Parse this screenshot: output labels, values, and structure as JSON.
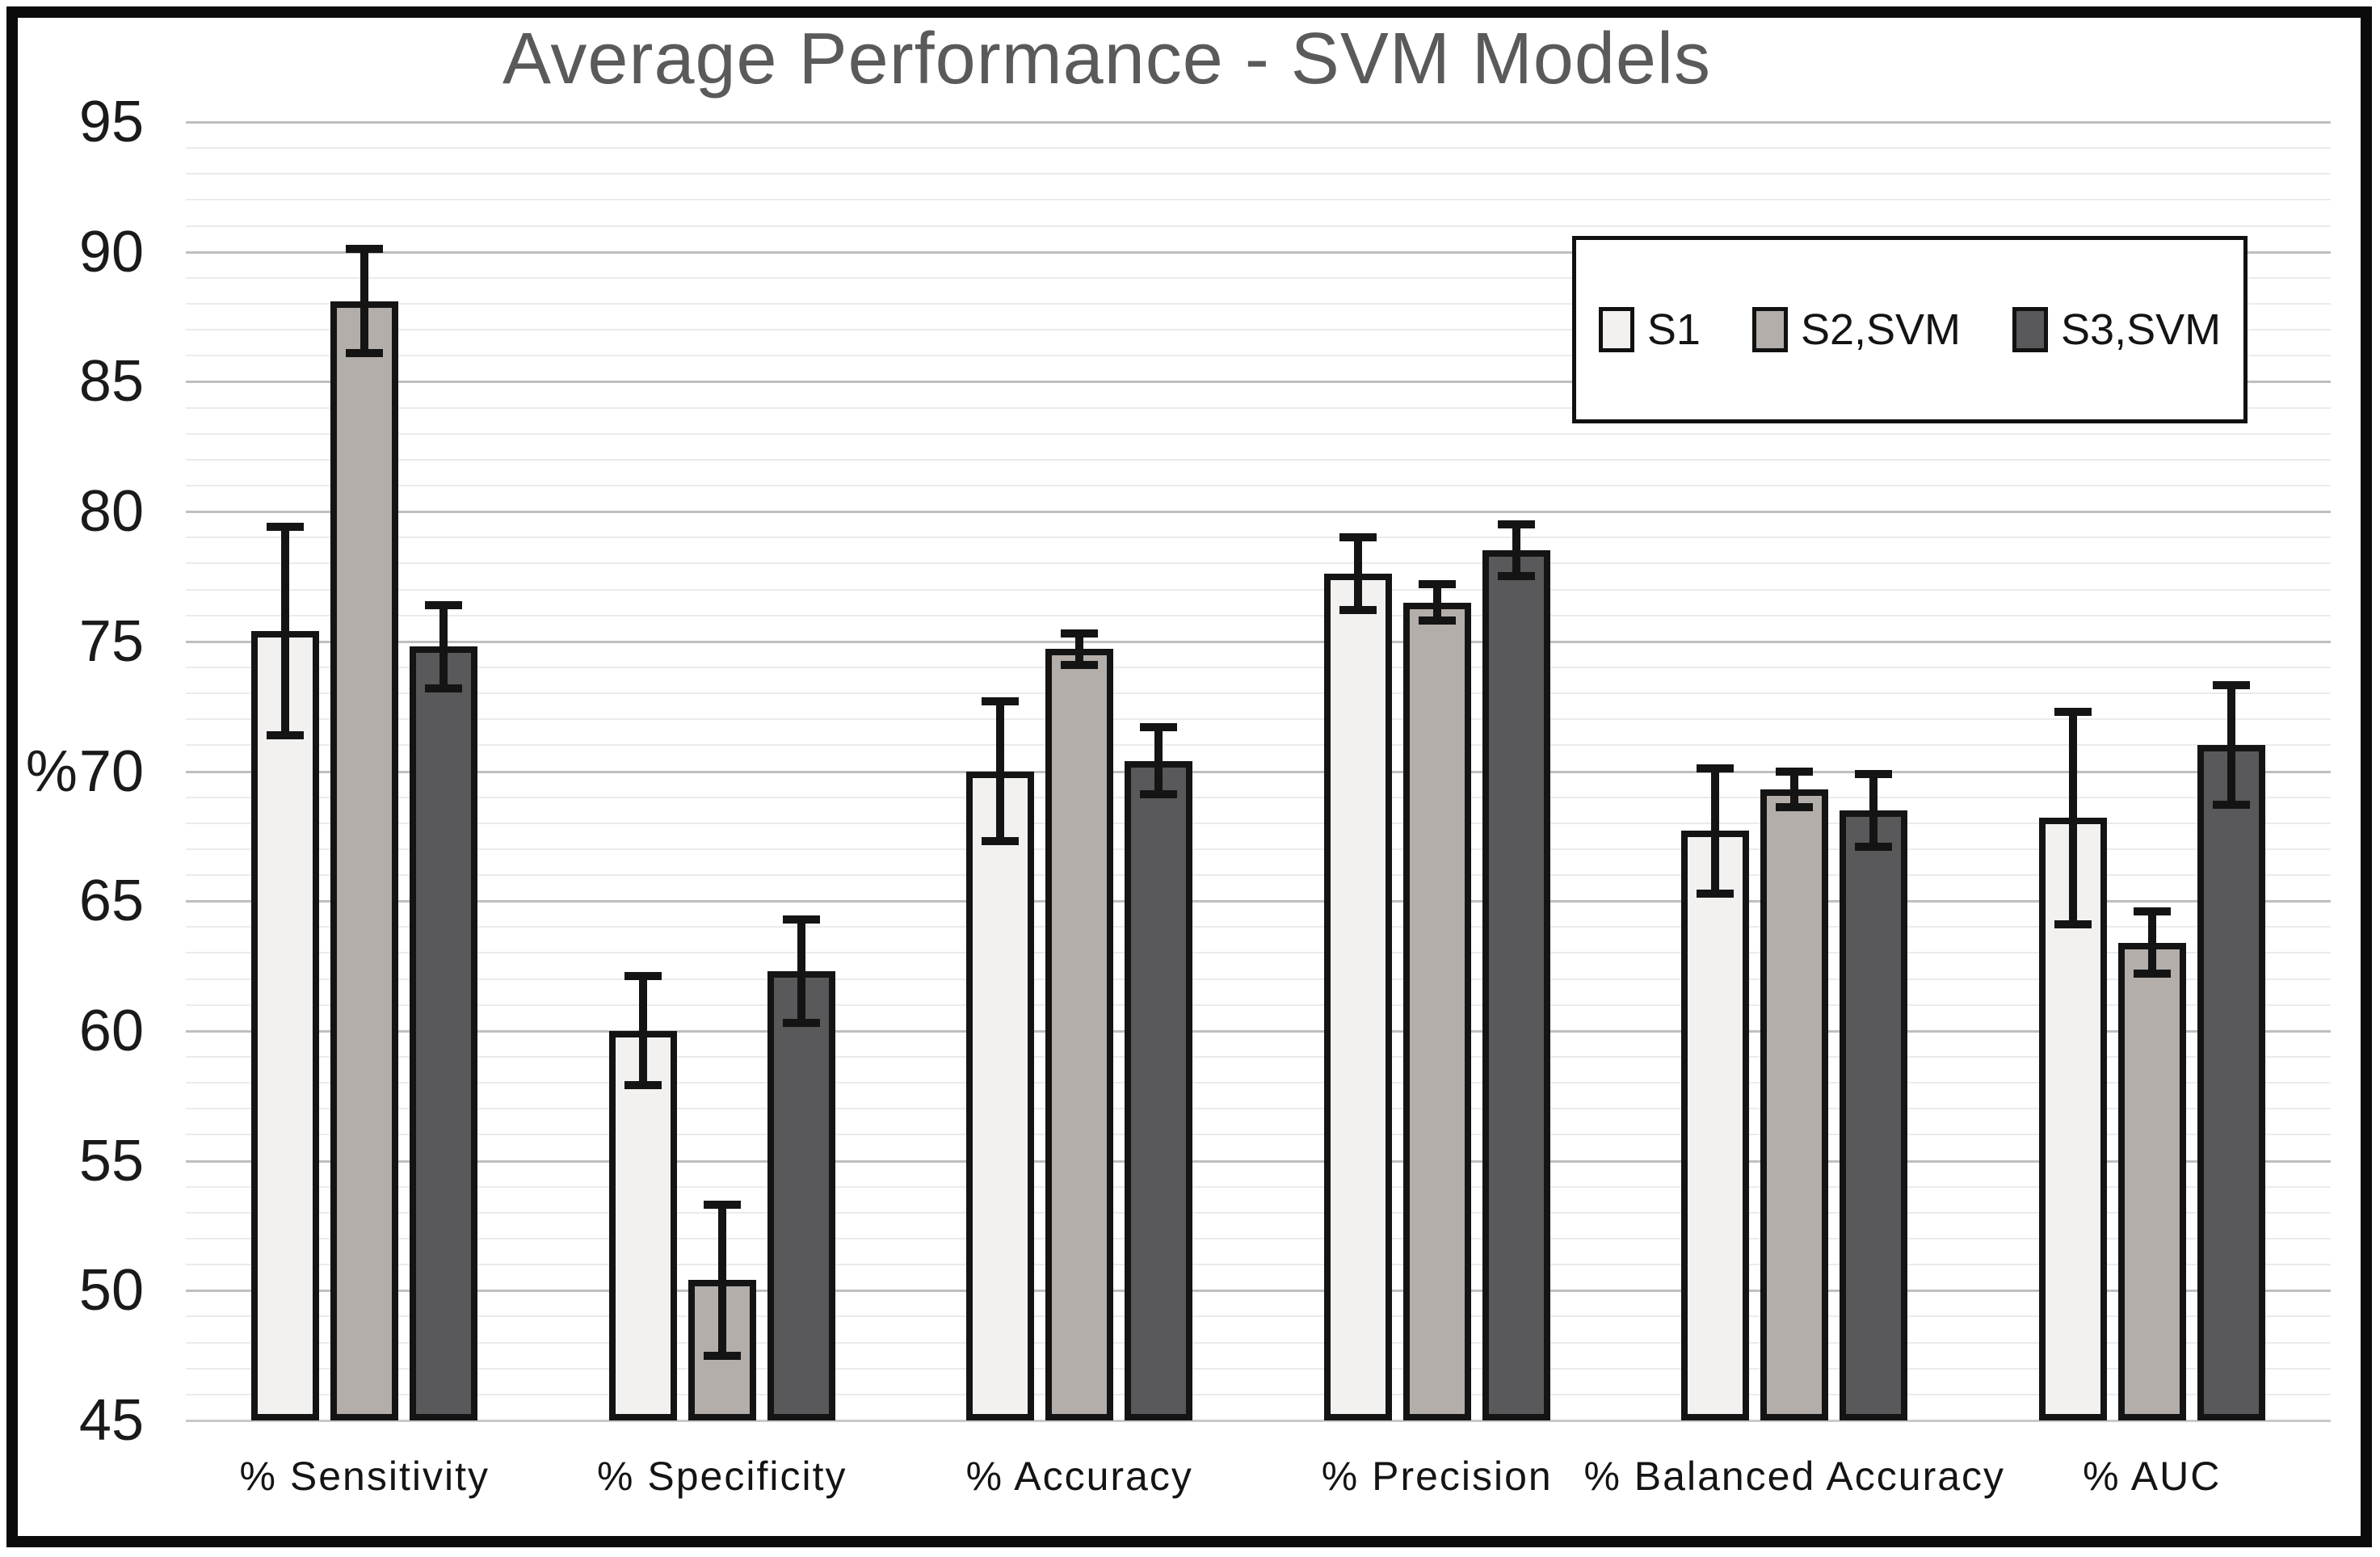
{
  "title": "Average Performance - SVM Models",
  "chart_data": {
    "type": "bar",
    "title": "Average Performance - SVM Models",
    "ylabel": "%",
    "xlabel": "",
    "ylim": [
      45,
      95
    ],
    "ytick_step": 5,
    "yticks": [
      95,
      90,
      85,
      80,
      75,
      70,
      65,
      60,
      55,
      50,
      45
    ],
    "minor_grid_step": 1,
    "grid": true,
    "legend_position": "top-right",
    "categories": [
      "% Sensitivity",
      "% Specificity",
      "% Accuracy",
      "% Precision",
      "% Balanced Accuracy",
      "% AUC"
    ],
    "series": [
      {
        "name": "S1",
        "color": "#f2f1ef",
        "values": [
          75.4,
          60.0,
          70.0,
          77.6,
          67.7,
          68.2
        ],
        "errors": [
          4.0,
          2.1,
          2.7,
          1.4,
          2.4,
          4.1
        ]
      },
      {
        "name": "S2,SVM",
        "color": "#b3aeaa",
        "values": [
          88.1,
          50.4,
          74.7,
          76.5,
          69.3,
          63.4
        ],
        "errors": [
          2.0,
          2.9,
          0.6,
          0.7,
          0.7,
          1.2
        ]
      },
      {
        "name": "S3,SVM",
        "color": "#59595b",
        "values": [
          74.8,
          62.3,
          70.4,
          78.5,
          68.5,
          71.0
        ],
        "errors": [
          1.6,
          2.0,
          1.3,
          1.0,
          1.4,
          2.3
        ]
      }
    ],
    "bar_border_color": "#141414",
    "error_bar_color": "#141414"
  },
  "colors": {
    "title": "#5a5a5a",
    "axis_text": "#1a1a1a",
    "frame": "#0b0b0b",
    "grid_minor": "#ebebeb",
    "grid_major": "#bfbfbf",
    "axis_line": "#c9c9c9",
    "background": "#ffffff"
  }
}
